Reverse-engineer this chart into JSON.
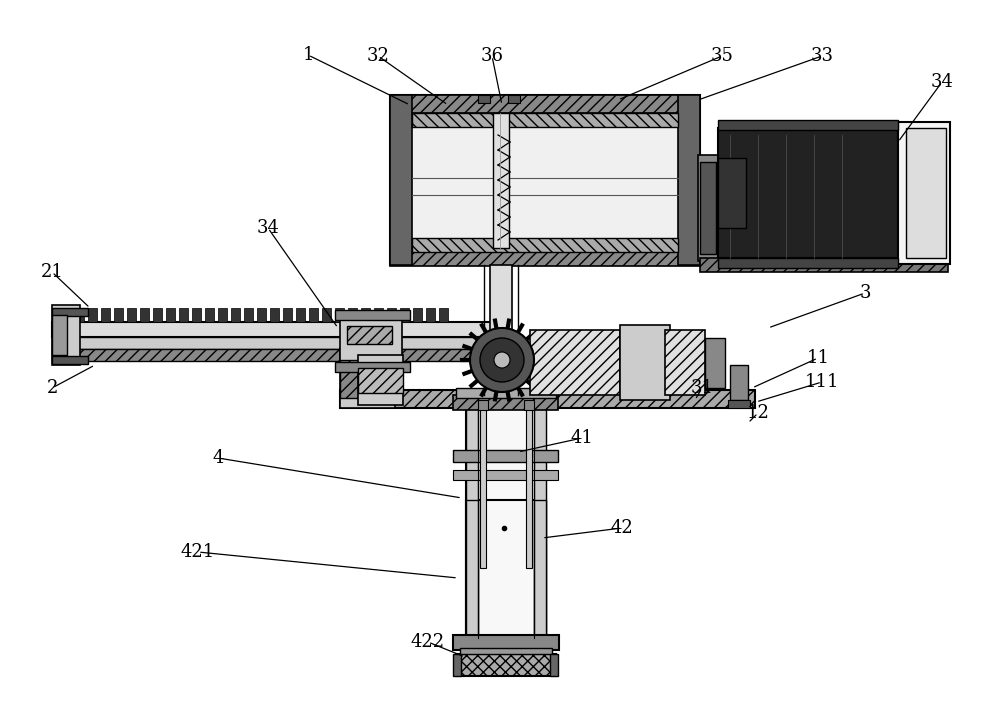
{
  "bg_color": "#ffffff",
  "figsize": [
    10.0,
    7.14
  ],
  "dpi": 100,
  "labels_data": [
    [
      "1",
      308,
      55,
      410,
      105
    ],
    [
      "2",
      52,
      388,
      95,
      365
    ],
    [
      "3",
      865,
      293,
      768,
      328
    ],
    [
      "4",
      218,
      458,
      462,
      498
    ],
    [
      "11",
      818,
      358,
      752,
      388
    ],
    [
      "12",
      758,
      413,
      748,
      423
    ],
    [
      "21",
      52,
      272,
      90,
      308
    ],
    [
      "31",
      702,
      388,
      695,
      400
    ],
    [
      "32",
      378,
      56,
      448,
      105
    ],
    [
      "33",
      822,
      56,
      698,
      100
    ],
    [
      "34",
      942,
      82,
      898,
      142
    ],
    [
      "34",
      268,
      228,
      338,
      328
    ],
    [
      "35",
      722,
      56,
      618,
      100
    ],
    [
      "36",
      492,
      56,
      502,
      105
    ],
    [
      "41",
      582,
      438,
      518,
      452
    ],
    [
      "42",
      622,
      528,
      542,
      538
    ],
    [
      "111",
      822,
      382,
      756,
      402
    ],
    [
      "421",
      198,
      552,
      458,
      578
    ],
    [
      "422",
      428,
      642,
      465,
      657
    ]
  ]
}
